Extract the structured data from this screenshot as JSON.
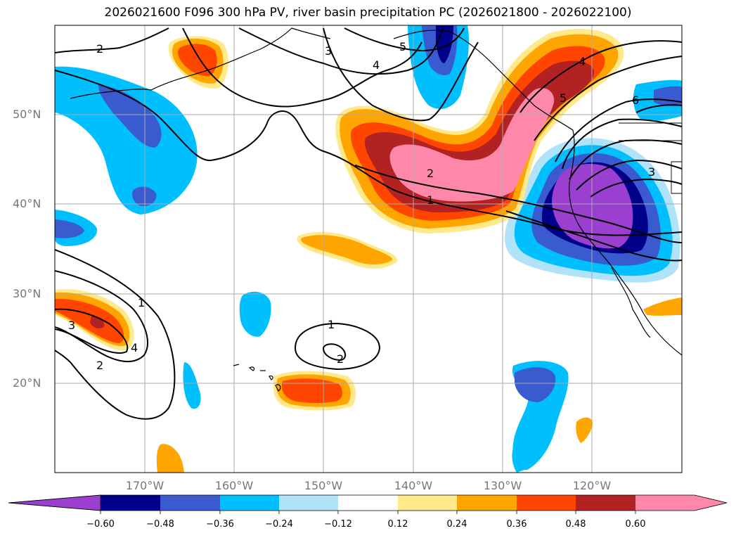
{
  "title": "2026021600 F096 300 hPa PV, river basin precipitation PC (2026021800 - 2026022100)",
  "latitude_labels": [
    "50°N",
    "40°N",
    "30°N",
    "20°N"
  ],
  "longitude_labels": [
    "170°W",
    "160°W",
    "150°W",
    "140°W",
    "130°W",
    "120°W"
  ],
  "contour_labels": [
    "2",
    "3",
    "4",
    "5",
    "6",
    "3",
    "2",
    "1",
    "1",
    "3",
    "4",
    "2",
    "1",
    "2",
    "5",
    "4"
  ],
  "colorbar": {
    "tick_labels": [
      "−0.60",
      "−0.48",
      "−0.36",
      "−0.24",
      "−0.12",
      "0.12",
      "0.24",
      "0.36",
      "0.48",
      "0.60"
    ],
    "colors": [
      "#9b3fd0",
      "#00008b",
      "#3a5bcf",
      "#00bfff",
      "#b0e2fa",
      "#ffffff",
      "#ffe98a",
      "#ffa500",
      "#ff4500",
      "#b22222",
      "#ff88aa",
      "#ff88aa"
    ]
  },
  "colors": {
    "grid": "#aaaaaa",
    "coast": "#000000"
  }
}
